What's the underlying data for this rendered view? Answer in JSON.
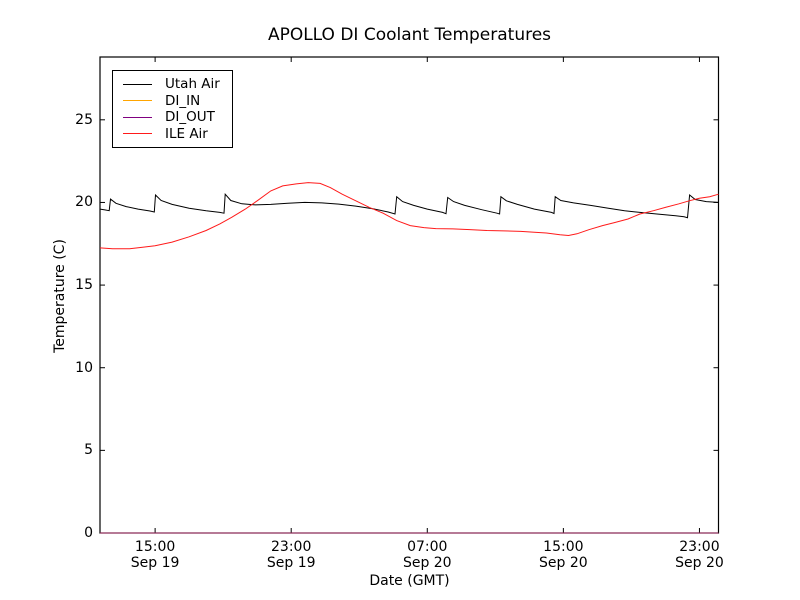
{
  "chart_data": {
    "type": "line",
    "title": "APOLLO DI Coolant Temperatures",
    "xlabel": "Date (GMT)",
    "ylabel": "Temperature (C)",
    "grid": false,
    "legend_position": "upper left",
    "x_unit": "hours since Sep 19 00:00 GMT",
    "xlim": [
      11.76,
      48.12
    ],
    "ylim": [
      0,
      28.8
    ],
    "y_ticks": [
      0,
      5,
      10,
      15,
      20,
      25
    ],
    "x_ticks": [
      {
        "t": 15,
        "time": "15:00",
        "date": "Sep 19"
      },
      {
        "t": 23,
        "time": "23:00",
        "date": "Sep 19"
      },
      {
        "t": 31,
        "time": "07:00",
        "date": "Sep 20"
      },
      {
        "t": 39,
        "time": "15:00",
        "date": "Sep 20"
      },
      {
        "t": 47,
        "time": "23:00",
        "date": "Sep 20"
      }
    ],
    "series": [
      {
        "name": "Utah Air",
        "color": "#000000",
        "points": [
          [
            11.76,
            19.6
          ],
          [
            12.05,
            19.55
          ],
          [
            12.3,
            19.5
          ],
          [
            12.38,
            20.2
          ],
          [
            12.7,
            19.95
          ],
          [
            13.3,
            19.75
          ],
          [
            14.0,
            19.6
          ],
          [
            14.7,
            19.48
          ],
          [
            14.95,
            19.42
          ],
          [
            15.02,
            20.45
          ],
          [
            15.35,
            20.12
          ],
          [
            16.0,
            19.88
          ],
          [
            17.0,
            19.65
          ],
          [
            18.0,
            19.5
          ],
          [
            18.8,
            19.4
          ],
          [
            19.05,
            19.35
          ],
          [
            19.12,
            20.5
          ],
          [
            19.45,
            20.12
          ],
          [
            20.1,
            19.92
          ],
          [
            20.9,
            19.85
          ],
          [
            21.8,
            19.88
          ],
          [
            22.8,
            19.95
          ],
          [
            23.8,
            20.0
          ],
          [
            24.8,
            19.97
          ],
          [
            25.8,
            19.9
          ],
          [
            26.8,
            19.78
          ],
          [
            27.8,
            19.62
          ],
          [
            28.7,
            19.42
          ],
          [
            29.1,
            19.3
          ],
          [
            29.2,
            20.35
          ],
          [
            29.55,
            20.05
          ],
          [
            30.2,
            19.82
          ],
          [
            31.0,
            19.6
          ],
          [
            31.9,
            19.4
          ],
          [
            32.1,
            19.32
          ],
          [
            32.2,
            20.3
          ],
          [
            32.55,
            20.05
          ],
          [
            33.2,
            19.82
          ],
          [
            34.2,
            19.56
          ],
          [
            35.1,
            19.35
          ],
          [
            35.25,
            19.3
          ],
          [
            35.33,
            20.35
          ],
          [
            35.65,
            20.1
          ],
          [
            36.3,
            19.88
          ],
          [
            37.3,
            19.6
          ],
          [
            38.3,
            19.4
          ],
          [
            38.45,
            19.33
          ],
          [
            38.52,
            20.35
          ],
          [
            38.85,
            20.12
          ],
          [
            39.6,
            19.97
          ],
          [
            40.6,
            19.82
          ],
          [
            41.6,
            19.66
          ],
          [
            42.6,
            19.5
          ],
          [
            43.5,
            19.4
          ],
          [
            44.5,
            19.3
          ],
          [
            45.6,
            19.2
          ],
          [
            46.1,
            19.13
          ],
          [
            46.3,
            19.08
          ],
          [
            46.42,
            20.45
          ],
          [
            46.75,
            20.18
          ],
          [
            47.4,
            20.05
          ],
          [
            48.12,
            20.0
          ]
        ]
      },
      {
        "name": "DI_IN",
        "color": "#ffa500",
        "points": [
          [
            11.76,
            0
          ],
          [
            48.12,
            0
          ]
        ]
      },
      {
        "name": "DI_OUT",
        "color": "#800080",
        "points": [
          [
            11.76,
            0
          ],
          [
            48.12,
            0
          ]
        ]
      },
      {
        "name": "ILE Air",
        "color": "#ff1a1a",
        "points": [
          [
            11.76,
            17.25
          ],
          [
            12.5,
            17.2
          ],
          [
            13.5,
            17.2
          ],
          [
            14.2,
            17.28
          ],
          [
            15.0,
            17.38
          ],
          [
            16.0,
            17.6
          ],
          [
            17.0,
            17.92
          ],
          [
            18.0,
            18.3
          ],
          [
            18.8,
            18.7
          ],
          [
            19.5,
            19.1
          ],
          [
            20.3,
            19.6
          ],
          [
            21.0,
            20.1
          ],
          [
            21.8,
            20.7
          ],
          [
            22.5,
            21.0
          ],
          [
            23.3,
            21.12
          ],
          [
            24.0,
            21.2
          ],
          [
            24.7,
            21.15
          ],
          [
            25.3,
            20.9
          ],
          [
            26.0,
            20.5
          ],
          [
            26.8,
            20.1
          ],
          [
            27.6,
            19.7
          ],
          [
            28.4,
            19.35
          ],
          [
            29.2,
            18.9
          ],
          [
            30.0,
            18.6
          ],
          [
            30.8,
            18.48
          ],
          [
            31.5,
            18.42
          ],
          [
            32.5,
            18.4
          ],
          [
            33.5,
            18.36
          ],
          [
            34.5,
            18.3
          ],
          [
            35.5,
            18.28
          ],
          [
            36.5,
            18.25
          ],
          [
            37.3,
            18.2
          ],
          [
            38.0,
            18.15
          ],
          [
            38.8,
            18.05
          ],
          [
            39.3,
            18.0
          ],
          [
            39.8,
            18.1
          ],
          [
            40.5,
            18.35
          ],
          [
            41.3,
            18.6
          ],
          [
            42.0,
            18.78
          ],
          [
            42.8,
            19.0
          ],
          [
            43.5,
            19.3
          ],
          [
            44.3,
            19.5
          ],
          [
            45.0,
            19.7
          ],
          [
            45.8,
            19.92
          ],
          [
            46.4,
            20.1
          ],
          [
            47.0,
            20.25
          ],
          [
            47.6,
            20.35
          ],
          [
            48.12,
            20.5
          ]
        ]
      }
    ]
  }
}
